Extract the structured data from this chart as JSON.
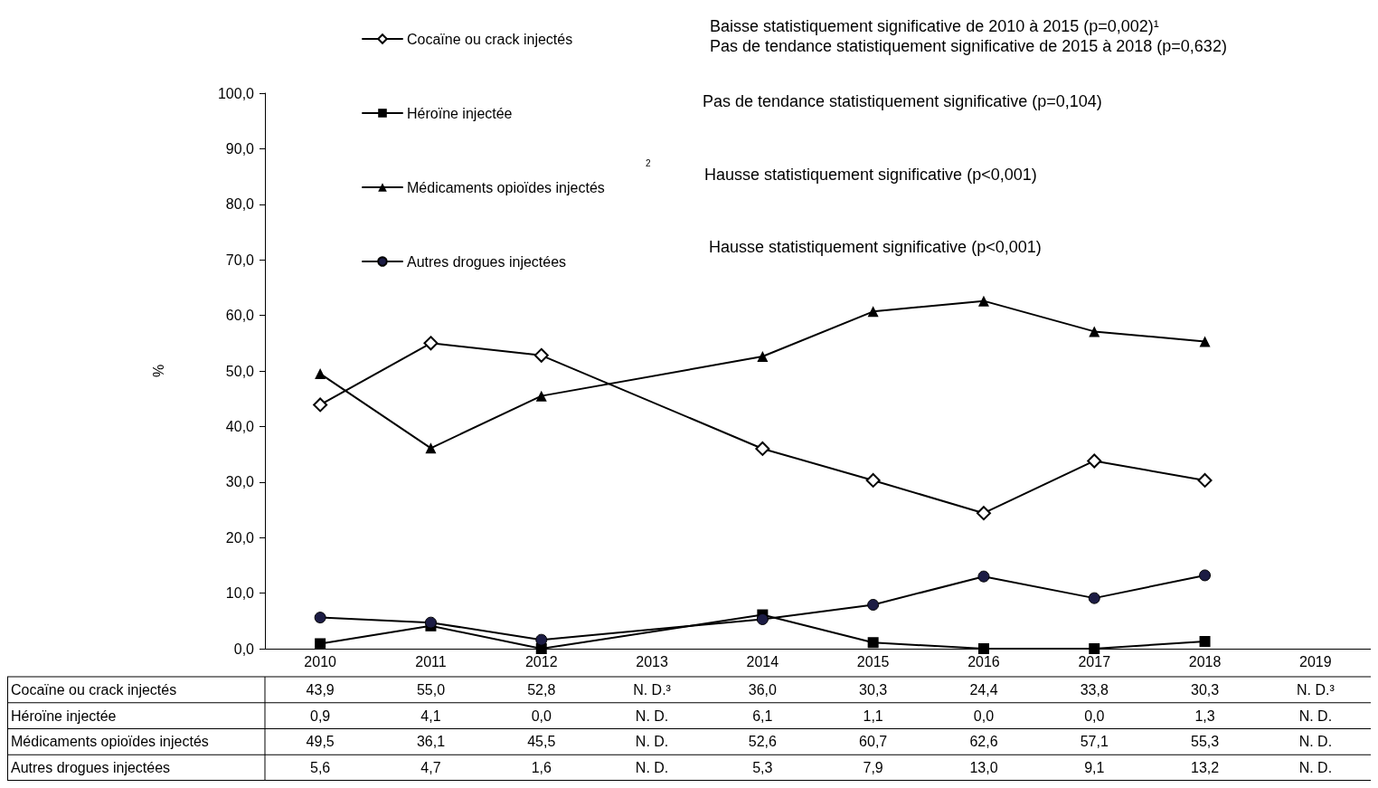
{
  "chart_data": {
    "type": "line",
    "ylabel": "%",
    "categories": [
      "2010",
      "2011",
      "2012",
      "2013",
      "2014",
      "2015",
      "2016",
      "2017",
      "2018",
      "2019"
    ],
    "ylim": [
      0,
      100
    ],
    "yticks": [
      {
        "value": 0,
        "label": "0,0"
      },
      {
        "value": 10,
        "label": "10,0"
      },
      {
        "value": 20,
        "label": "20,0"
      },
      {
        "value": 30,
        "label": "30,0"
      },
      {
        "value": 40,
        "label": "40,0"
      },
      {
        "value": 50,
        "label": "50,0"
      },
      {
        "value": 60,
        "label": "60,0"
      },
      {
        "value": 70,
        "label": "70,0"
      },
      {
        "value": 80,
        "label": "80,0"
      },
      {
        "value": 90,
        "label": "90,0"
      },
      {
        "value": 100,
        "label": "100,0"
      }
    ],
    "grid": false,
    "legend": "top left",
    "series": [
      {
        "name": "Cocaïne ou crack injectés",
        "color": "#000000",
        "marker": "diamond",
        "values": [
          43.9,
          55.0,
          52.8,
          null,
          36.0,
          30.3,
          24.4,
          33.8,
          30.3,
          null
        ],
        "value_labels": [
          "43,9",
          "55,0",
          "52,8",
          "N. D.³",
          "36,0",
          "30,3",
          "24,4",
          "33,8",
          "30,3",
          "N. D.³"
        ]
      },
      {
        "name": "Héroïne injectée",
        "color": "#000000",
        "marker": "square",
        "values": [
          0.9,
          4.1,
          0.0,
          null,
          6.1,
          1.1,
          0.0,
          0.0,
          1.3,
          null
        ],
        "value_labels": [
          "0,9",
          "4,1",
          "0,0",
          "N. D.",
          "6,1",
          "1,1",
          "0,0",
          "0,0",
          "1,3",
          "N. D."
        ]
      },
      {
        "name": "Médicaments opioïdes injectés",
        "color": "#000000",
        "marker": "triangle",
        "values": [
          49.5,
          36.1,
          45.5,
          null,
          52.6,
          60.7,
          62.6,
          57.1,
          55.3,
          null
        ],
        "value_labels": [
          "49,5",
          "36,1",
          "45,5",
          "N. D.",
          "52,6",
          "60,7",
          "62,6",
          "57,1",
          "55,3",
          "N. D."
        ]
      },
      {
        "name": "Autres drogues injectées",
        "color": "#1c1c44",
        "marker": "circle",
        "values": [
          5.6,
          4.7,
          1.6,
          null,
          5.3,
          7.9,
          13.0,
          9.1,
          13.2,
          null
        ],
        "value_labels": [
          "5,6",
          "4,7",
          "1,6",
          "N. D.",
          "5,3",
          "7,9",
          "13,0",
          "9,1",
          "13,2",
          "N. D."
        ]
      }
    ],
    "annotations": [
      "Baisse statistiquement significative de 2010 à 2015 (p=0,002)¹",
      "Pas de tendance statistiquement significative de 2015 à 2018 (p=0,632)",
      "Pas de tendance statistiquement significative (p=0,104)",
      "2",
      "Hausse statistiquement significative (p<0,001)",
      "Hausse statistiquement significative (p<0,001)"
    ]
  }
}
